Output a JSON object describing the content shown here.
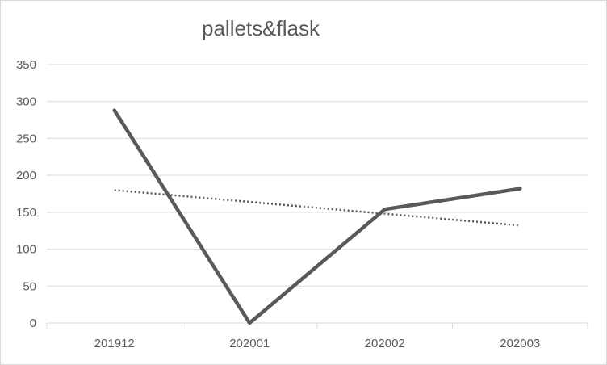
{
  "chart_data": {
    "type": "line",
    "title": "pallets&flask",
    "categories": [
      "201912",
      "202001",
      "202002",
      "202003"
    ],
    "series": [
      {
        "values": [
          288,
          0,
          154,
          182
        ],
        "color": "#595959",
        "style": "solid"
      }
    ],
    "trendline": {
      "type": "linear",
      "values": [
        180,
        164,
        148,
        132
      ],
      "color": "#595959",
      "style": "dotted"
    },
    "ylim": [
      0,
      350
    ],
    "yticks": [
      0,
      50,
      100,
      150,
      200,
      250,
      300,
      350
    ],
    "grid": true,
    "legend": "none"
  }
}
